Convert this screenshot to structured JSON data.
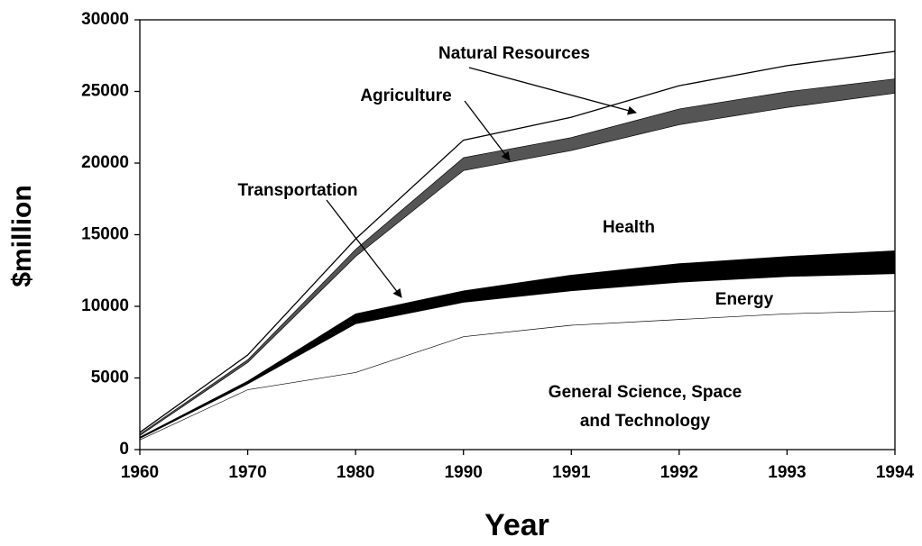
{
  "chart_data": {
    "type": "stacked_area",
    "x_label": "Year",
    "y_label": "$million",
    "categories": [
      "1960",
      "1970",
      "1980",
      "1990",
      "1991",
      "1992",
      "1993",
      "1994"
    ],
    "series": [
      {
        "name": "General Science, Space and Technology",
        "color": "#ffffff",
        "values": [
          700,
          4200,
          5400,
          7900,
          8700,
          9100,
          9500,
          9700
        ]
      },
      {
        "name": "Energy",
        "color": "#ffffff",
        "values": [
          100,
          400,
          3400,
          2400,
          2400,
          2600,
          2600,
          2600
        ]
      },
      {
        "name": "Transportation",
        "color": "#000000",
        "values": [
          100,
          200,
          700,
          800,
          1100,
          1300,
          1400,
          1600
        ]
      },
      {
        "name": "Health",
        "color": "#ffffff",
        "values": [
          100,
          1300,
          4000,
          8400,
          8700,
          9700,
          10400,
          11000
        ]
      },
      {
        "name": "Agriculture",
        "color": "#555555",
        "values": [
          100,
          200,
          500,
          900,
          900,
          1100,
          1100,
          1000
        ]
      },
      {
        "name": "Natural Resources",
        "color": "#ffffff",
        "values": [
          100,
          300,
          700,
          1200,
          1400,
          1600,
          1800,
          1900
        ]
      }
    ],
    "ylim": [
      0,
      30000
    ],
    "yticks": [
      0,
      5000,
      10000,
      15000,
      20000,
      25000,
      30000
    ]
  }
}
